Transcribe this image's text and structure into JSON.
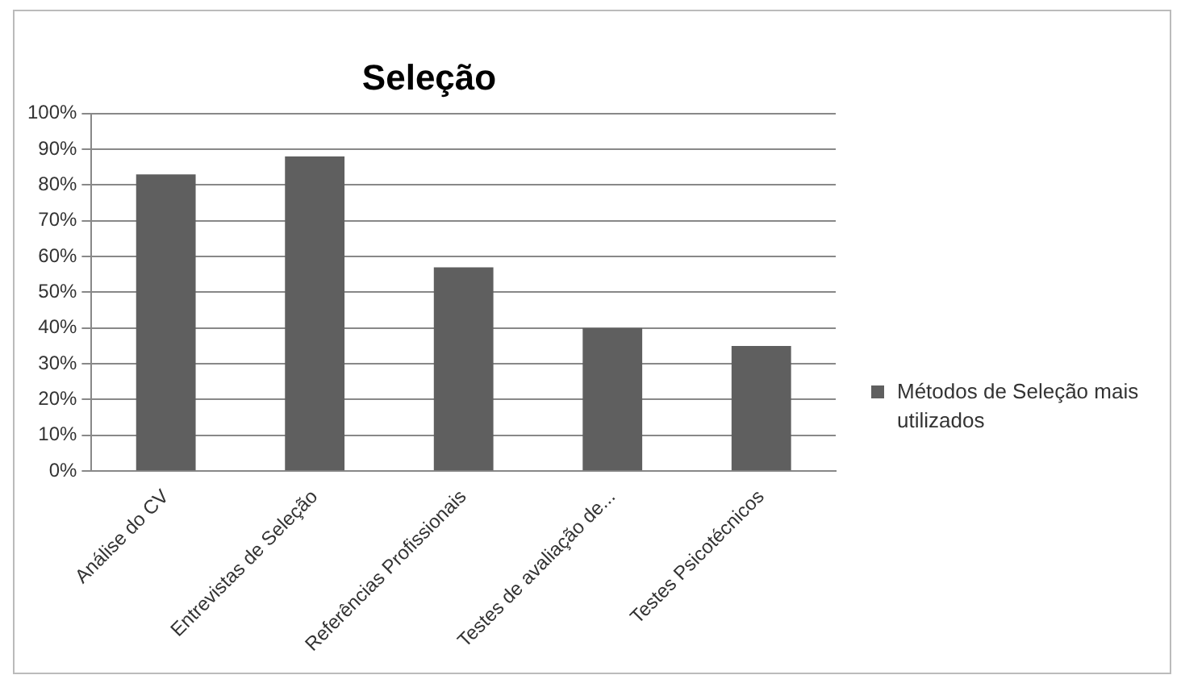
{
  "chart_data": {
    "type": "bar",
    "title": "Seleção",
    "categories": [
      "Análise do CV",
      "Entrevistas de Seleção",
      "Referências Profissionais",
      "Testes de avaliação de...",
      "Testes Psicotécnicos"
    ],
    "series": [
      {
        "name": "Métodos de Seleção mais utilizados",
        "color": "#5f5f5f",
        "values": [
          83,
          88,
          57,
          40,
          35
        ]
      }
    ],
    "ylim": [
      0,
      100
    ],
    "yticks": [
      {
        "value": 0,
        "label": "0%"
      },
      {
        "value": 10,
        "label": "10%"
      },
      {
        "value": 20,
        "label": "20%"
      },
      {
        "value": 30,
        "label": "30%"
      },
      {
        "value": 40,
        "label": "40%"
      },
      {
        "value": 50,
        "label": "50%"
      },
      {
        "value": 60,
        "label": "60%"
      },
      {
        "value": 70,
        "label": "70%"
      },
      {
        "value": 80,
        "label": "80%"
      },
      {
        "value": 90,
        "label": "90%"
      },
      {
        "value": 100,
        "label": "100%"
      }
    ],
    "grid": "y",
    "legend": "right"
  }
}
